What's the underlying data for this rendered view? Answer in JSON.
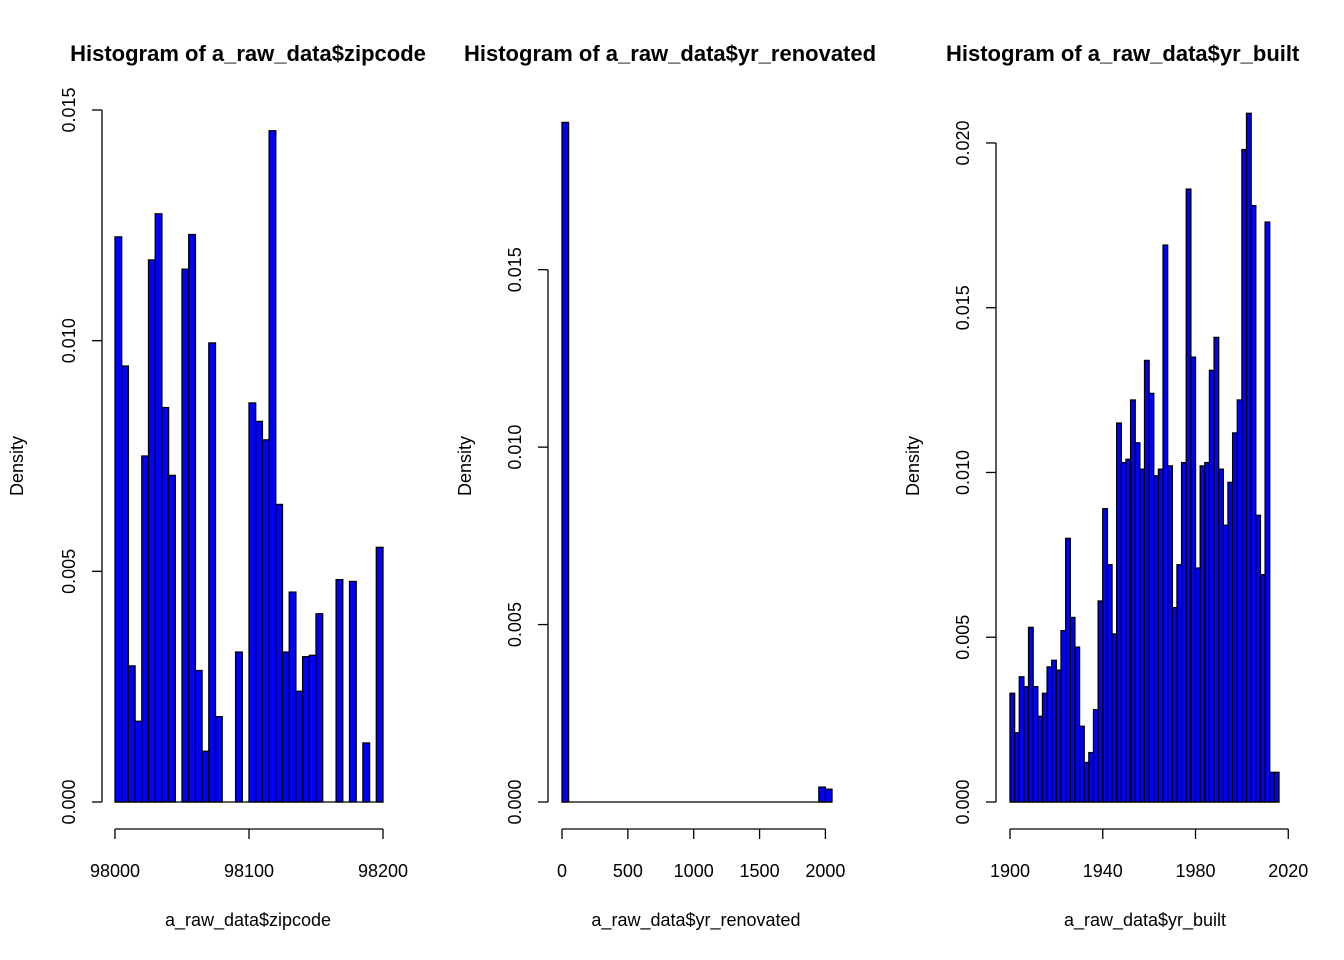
{
  "chart_data": [
    {
      "type": "bar",
      "title": "Histogram of a_raw_data$zipcode",
      "xlabel": "a_raw_data$zipcode",
      "ylabel": "Density",
      "bar_color": "#0000FF",
      "bin_width": 5,
      "xlim": [
        98000,
        98200
      ],
      "ylim": [
        0,
        0.015
      ],
      "x_ticks": [
        98000,
        98100,
        98200
      ],
      "x_tick_labels": [
        "98000",
        "98100",
        "98200"
      ],
      "y_ticks": [
        0,
        0.005,
        0.01,
        0.015
      ],
      "y_tick_labels": [
        "0.000",
        "0.005",
        "0.010",
        "0.015"
      ],
      "bins": [
        {
          "x0": 98000,
          "x1": 98005,
          "density": 0.01225
        },
        {
          "x0": 98005,
          "x1": 98010,
          "density": 0.00945
        },
        {
          "x0": 98010,
          "x1": 98015,
          "density": 0.00295
        },
        {
          "x0": 98015,
          "x1": 98020,
          "density": 0.00175
        },
        {
          "x0": 98020,
          "x1": 98025,
          "density": 0.0075
        },
        {
          "x0": 98025,
          "x1": 98030,
          "density": 0.01175
        },
        {
          "x0": 98030,
          "x1": 98035,
          "density": 0.01275
        },
        {
          "x0": 98035,
          "x1": 98040,
          "density": 0.00855
        },
        {
          "x0": 98040,
          "x1": 98045,
          "density": 0.00708
        },
        {
          "x0": 98045,
          "x1": 98050,
          "density": 0
        },
        {
          "x0": 98050,
          "x1": 98055,
          "density": 0.01155
        },
        {
          "x0": 98055,
          "x1": 98060,
          "density": 0.0123
        },
        {
          "x0": 98060,
          "x1": 98065,
          "density": 0.00285
        },
        {
          "x0": 98065,
          "x1": 98070,
          "density": 0.0011
        },
        {
          "x0": 98070,
          "x1": 98075,
          "density": 0.00995
        },
        {
          "x0": 98075,
          "x1": 98080,
          "density": 0.00185
        },
        {
          "x0": 98080,
          "x1": 98085,
          "density": 0
        },
        {
          "x0": 98085,
          "x1": 98090,
          "density": 0
        },
        {
          "x0": 98090,
          "x1": 98095,
          "density": 0.00325
        },
        {
          "x0": 98095,
          "x1": 98100,
          "density": 0
        },
        {
          "x0": 98100,
          "x1": 98105,
          "density": 0.00865
        },
        {
          "x0": 98105,
          "x1": 98110,
          "density": 0.00825
        },
        {
          "x0": 98110,
          "x1": 98115,
          "density": 0.00785
        },
        {
          "x0": 98115,
          "x1": 98120,
          "density": 0.01455
        },
        {
          "x0": 98120,
          "x1": 98125,
          "density": 0.00645
        },
        {
          "x0": 98125,
          "x1": 98130,
          "density": 0.00325
        },
        {
          "x0": 98130,
          "x1": 98135,
          "density": 0.00455
        },
        {
          "x0": 98135,
          "x1": 98140,
          "density": 0.0024
        },
        {
          "x0": 98140,
          "x1": 98145,
          "density": 0.00315
        },
        {
          "x0": 98145,
          "x1": 98150,
          "density": 0.00318
        },
        {
          "x0": 98150,
          "x1": 98155,
          "density": 0.00408
        },
        {
          "x0": 98155,
          "x1": 98160,
          "density": 0
        },
        {
          "x0": 98160,
          "x1": 98165,
          "density": 0
        },
        {
          "x0": 98165,
          "x1": 98170,
          "density": 0.00482
        },
        {
          "x0": 98170,
          "x1": 98175,
          "density": 0
        },
        {
          "x0": 98175,
          "x1": 98180,
          "density": 0.00478
        },
        {
          "x0": 98180,
          "x1": 98185,
          "density": 0
        },
        {
          "x0": 98185,
          "x1": 98190,
          "density": 0.00128
        },
        {
          "x0": 98190,
          "x1": 98195,
          "density": 0
        },
        {
          "x0": 98195,
          "x1": 98200,
          "density": 0.00552
        }
      ]
    },
    {
      "type": "bar",
      "title": "Histogram of a_raw_data$yr_renovated",
      "xlabel": "a_raw_data$yr_renovated",
      "ylabel": "Density",
      "bar_color": "#0000FF",
      "bin_width": 50,
      "xlim": [
        0,
        2050
      ],
      "ylim": [
        0,
        0.0195
      ],
      "x_ticks": [
        0,
        500,
        1000,
        1500,
        2000
      ],
      "x_tick_labels": [
        "0",
        "500",
        "1000",
        "1500",
        "2000"
      ],
      "y_ticks": [
        0,
        0.005,
        0.01,
        0.015
      ],
      "y_tick_labels": [
        "0.000",
        "0.005",
        "0.010",
        "0.015"
      ],
      "bins": [
        {
          "x0": 0,
          "x1": 50,
          "density": 0.01915
        },
        {
          "x0": 1950,
          "x1": 2000,
          "density": 0.00042
        },
        {
          "x0": 2000,
          "x1": 2050,
          "density": 0.00036
        }
      ]
    },
    {
      "type": "bar",
      "title": "Histogram of a_raw_data$yr_built",
      "xlabel": "a_raw_data$yr_built",
      "ylabel": "Density",
      "bar_color": "#0000FF",
      "bin_width": 2,
      "xlim": [
        1900,
        2016
      ],
      "ylim": [
        0,
        0.021
      ],
      "x_ticks": [
        1900,
        1940,
        1980,
        2020
      ],
      "x_tick_labels": [
        "1900",
        "1940",
        "1980",
        "2020"
      ],
      "y_ticks": [
        0,
        0.005,
        0.01,
        0.015,
        0.02
      ],
      "y_tick_labels": [
        "0.000",
        "0.005",
        "0.010",
        "0.015",
        "0.020"
      ],
      "densities": [
        0.0033,
        0.0021,
        0.0038,
        0.0035,
        0.0053,
        0.0035,
        0.0026,
        0.0033,
        0.0041,
        0.0043,
        0.004,
        0.0052,
        0.008,
        0.0056,
        0.0047,
        0.0023,
        0.0012,
        0.0015,
        0.0028,
        0.0061,
        0.0089,
        0.0072,
        0.0051,
        0.0115,
        0.0103,
        0.0104,
        0.0122,
        0.0109,
        0.0101,
        0.0134,
        0.0124,
        0.0099,
        0.0101,
        0.0169,
        0.0102,
        0.0059,
        0.0072,
        0.0103,
        0.0186,
        0.0135,
        0.0071,
        0.0102,
        0.0103,
        0.0131,
        0.0141,
        0.0101,
        0.0084,
        0.0097,
        0.0112,
        0.0122,
        0.0198,
        0.0209,
        0.0181,
        0.0087,
        0.0069,
        0.0176,
        0.0009,
        0.0009
      ]
    }
  ]
}
